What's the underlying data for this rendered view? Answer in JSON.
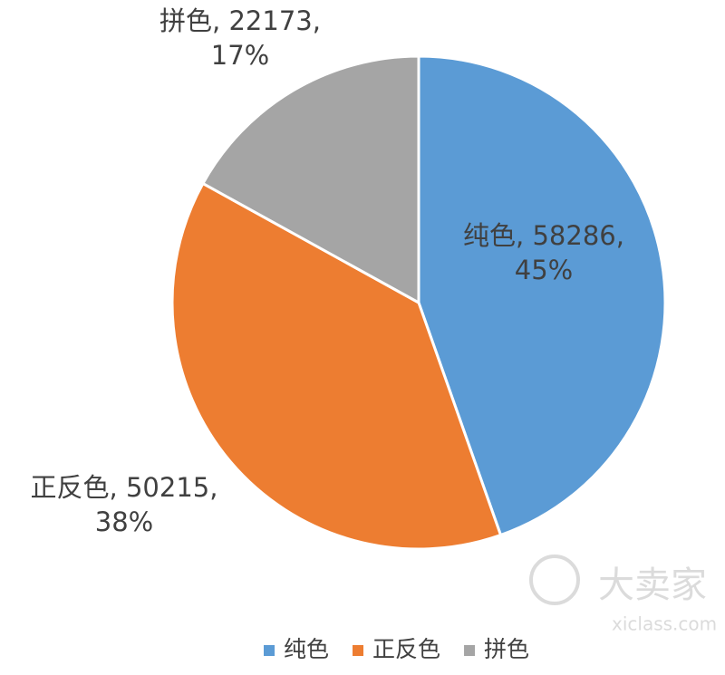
{
  "chart_data": {
    "type": "pie",
    "categories": [
      "纯色",
      "正反色",
      "拼色"
    ],
    "values": [
      58286,
      50215,
      22173
    ],
    "value_labels": [
      [
        "纯色, 58286,",
        "45%"
      ],
      [
        "正反色, 50215,",
        "38%"
      ],
      [
        "拼色, 22173,",
        "17%"
      ]
    ],
    "colors": [
      "#5b9bd5",
      "#ed7d31",
      "#a5a5a5"
    ],
    "legend": "bottom"
  },
  "watermark": [
    "大卖家",
    "xiclass.com"
  ]
}
